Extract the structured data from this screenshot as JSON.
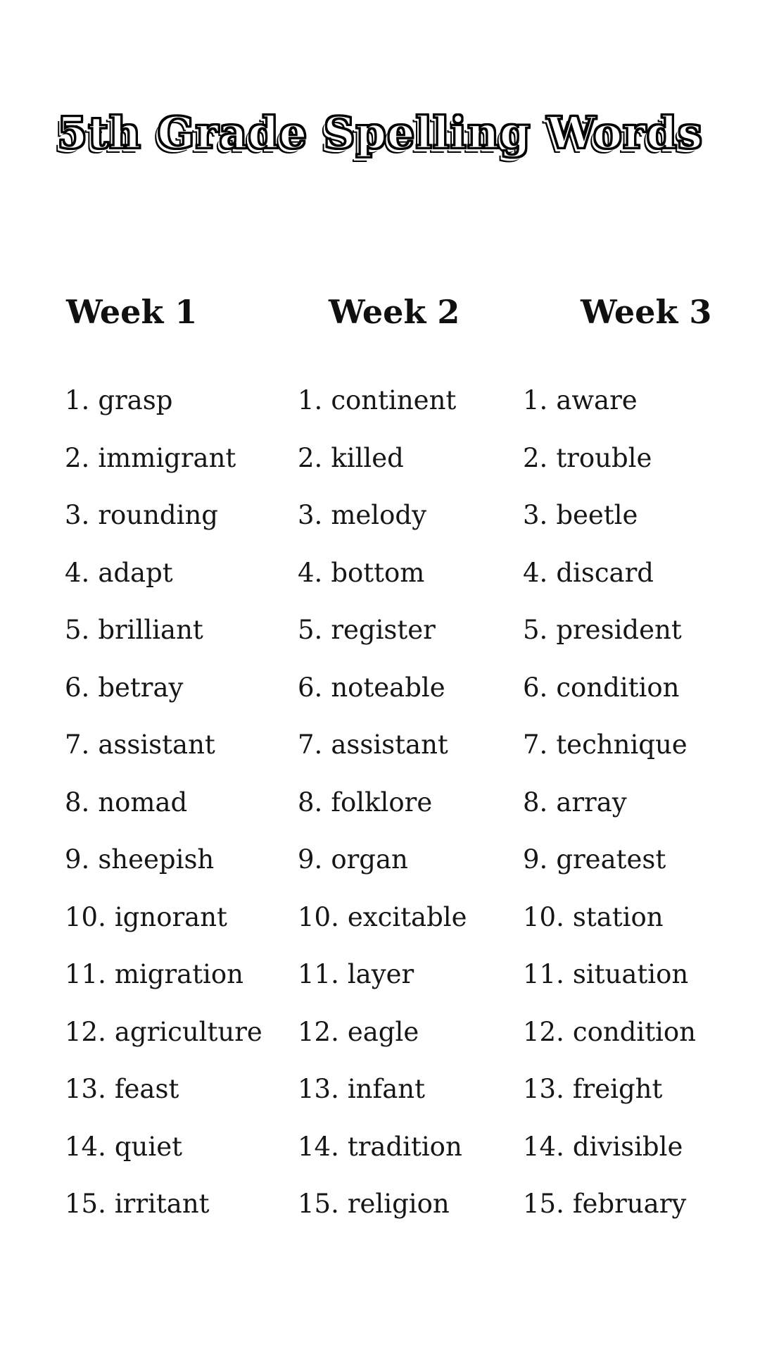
{
  "title": "5th Grade Spelling Words",
  "colors": {
    "background": "#ffffff",
    "text": "#161616",
    "title_fill": "#ffffff",
    "title_outline": "#000000"
  },
  "columns": [
    {
      "header": "Week 1",
      "words": [
        "grasp",
        "immigrant",
        "rounding",
        "adapt",
        "brilliant",
        "betray",
        "assistant",
        "nomad",
        "sheepish",
        "ignorant",
        "migration",
        "agriculture",
        "feast",
        "quiet",
        "irritant"
      ]
    },
    {
      "header": "Week 2",
      "words": [
        "continent",
        "killed",
        "melody",
        "bottom",
        "register",
        "noteable",
        "assistant",
        "folklore",
        "organ",
        "excitable",
        "layer",
        "eagle",
        "infant",
        "tradition",
        "religion"
      ]
    },
    {
      "header": "Week 3",
      "words": [
        "aware",
        "trouble",
        "beetle",
        "discard",
        "president",
        "condition",
        "technique",
        "array",
        "greatest",
        "station",
        "situation",
        "condition",
        "freight",
        "divisible",
        "february"
      ]
    }
  ]
}
